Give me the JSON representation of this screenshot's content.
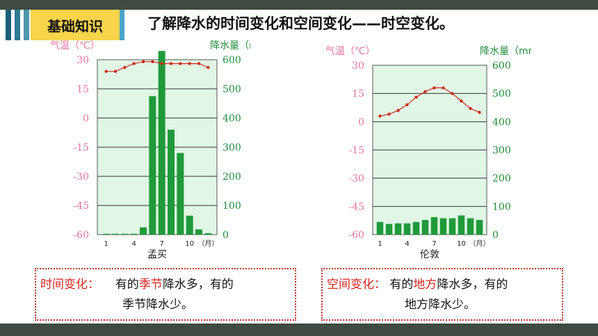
{
  "header": {
    "section_tag": "基础知识",
    "title": "了解降水的时间变化和空间变化——时空变化。"
  },
  "colors": {
    "accent_red": "#d8241c",
    "temp_axis": "#e6749e",
    "precip_axis": "#1f8b39",
    "plot_bg": "#e1f6e5",
    "bar": "#1f9a3a",
    "temp_line": "#d12a1c"
  },
  "chart_data": [
    {
      "type": "bar",
      "title": "孟买",
      "x": [
        1,
        2,
        3,
        4,
        5,
        6,
        7,
        8,
        9,
        10,
        11,
        12
      ],
      "x_tick_labels": [
        "1",
        "4",
        "7",
        "10",
        "（月）"
      ],
      "y_left_label": "气温（℃）",
      "y_left_ticks": [
        "30",
        "15",
        "0",
        "-15",
        "-30",
        "-45",
        "-60"
      ],
      "y_left_range": [
        -60,
        30
      ],
      "y_right_label": "降水量（mm）",
      "y_right_ticks": [
        "600",
        "500",
        "400",
        "300",
        "200",
        "100",
        "0"
      ],
      "y_right_range": [
        0,
        600
      ],
      "grid": true,
      "series": [
        {
          "name": "降水量",
          "kind": "bar",
          "values": [
            3,
            3,
            3,
            3,
            25,
            475,
            630,
            360,
            280,
            65,
            18,
            5
          ]
        },
        {
          "name": "气温",
          "kind": "line",
          "values": [
            24,
            24,
            26,
            28,
            29,
            29,
            28,
            28,
            28,
            28,
            28,
            26
          ]
        }
      ]
    },
    {
      "type": "bar",
      "title": "伦敦",
      "x": [
        1,
        2,
        3,
        4,
        5,
        6,
        7,
        8,
        9,
        10,
        11,
        12
      ],
      "x_tick_labels": [
        "1",
        "4",
        "7",
        "10",
        "（月）"
      ],
      "y_left_label": "气温（℃）",
      "y_left_ticks": [
        "30",
        "15",
        "0",
        "-15",
        "-30",
        "-45",
        "-60"
      ],
      "y_left_range": [
        -60,
        30
      ],
      "y_right_label": "降水量（mm）",
      "y_right_ticks": [
        "600",
        "500",
        "400",
        "300",
        "200",
        "100",
        "0"
      ],
      "y_right_range": [
        0,
        600
      ],
      "grid": true,
      "series": [
        {
          "name": "降水量",
          "kind": "bar",
          "values": [
            45,
            38,
            40,
            40,
            45,
            52,
            62,
            58,
            58,
            68,
            58,
            52
          ]
        },
        {
          "name": "气温",
          "kind": "line",
          "values": [
            3,
            4,
            6,
            9,
            13,
            16,
            18,
            18,
            15,
            11,
            7,
            5
          ]
        }
      ]
    }
  ],
  "notes": [
    {
      "label": "时间变化：",
      "pre": "有的",
      "highlight": "季节",
      "post": "降水多，有的",
      "line2": "季节降水少。"
    },
    {
      "label": "空间变化：",
      "pre": "有的",
      "highlight": "地方",
      "post": "降水多，有的",
      "line2": "地方降水少。"
    }
  ]
}
